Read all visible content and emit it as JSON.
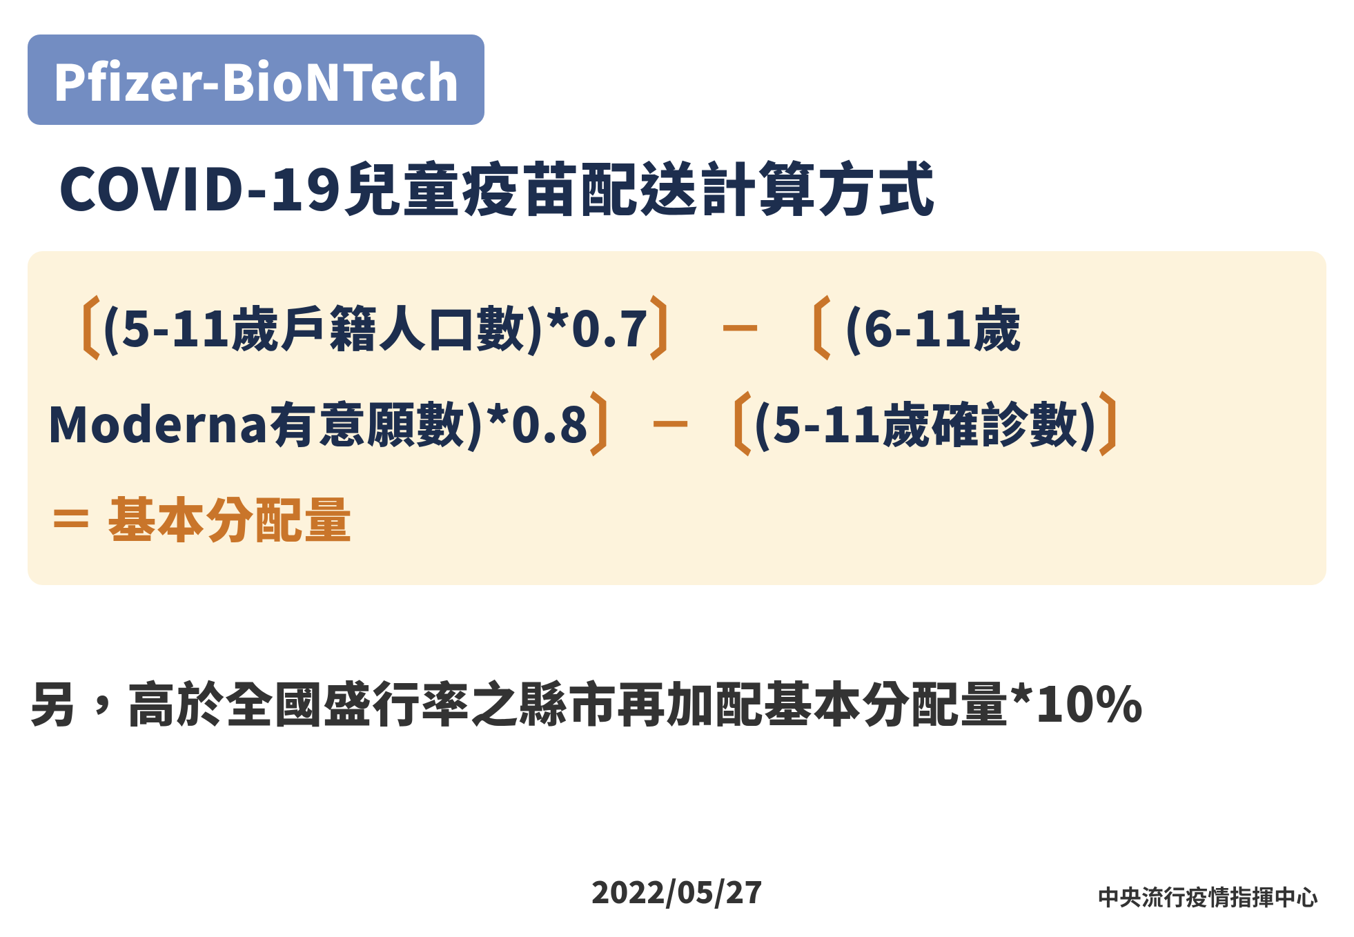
{
  "colors": {
    "badge_bg": "#738dc2",
    "badge_text": "#ffffff",
    "title_text": "#1d2e4e",
    "formula_bg": "#fdf3dc",
    "bracket": "#c9752a",
    "formula_text": "#1d2e4e",
    "result_text": "#c9752a",
    "note_text": "#333333",
    "date_text": "#333333",
    "source_text": "#333333",
    "background": "#ffffff"
  },
  "typography": {
    "badge_fontsize": 72,
    "title_fontsize": 84,
    "formula_fontsize": 70,
    "bracket_fontsize": 78,
    "note_fontsize": 70,
    "date_fontsize": 44,
    "source_fontsize": 32
  },
  "badge": {
    "label": "Pfizer-BioNTech"
  },
  "title": "COVID-19兒童疫苗配送計算方式",
  "formula": {
    "term1": "(5-11歲戶籍人口數)*0.7",
    "minus1": "－",
    "term2_a": "(6-11歲",
    "term2_b": "Moderna有意願數)*0.8",
    "minus2": "－",
    "term3": "(5-11歲確診數)",
    "equals": "＝",
    "result": "基本分配量",
    "left_bracket": "〔",
    "right_bracket": "〕"
  },
  "note": "另，高於全國盛行率之縣市再加配基本分配量*10%",
  "footer": {
    "date": "2022/05/27"
  },
  "source": "中央流行疫情指揮中心"
}
